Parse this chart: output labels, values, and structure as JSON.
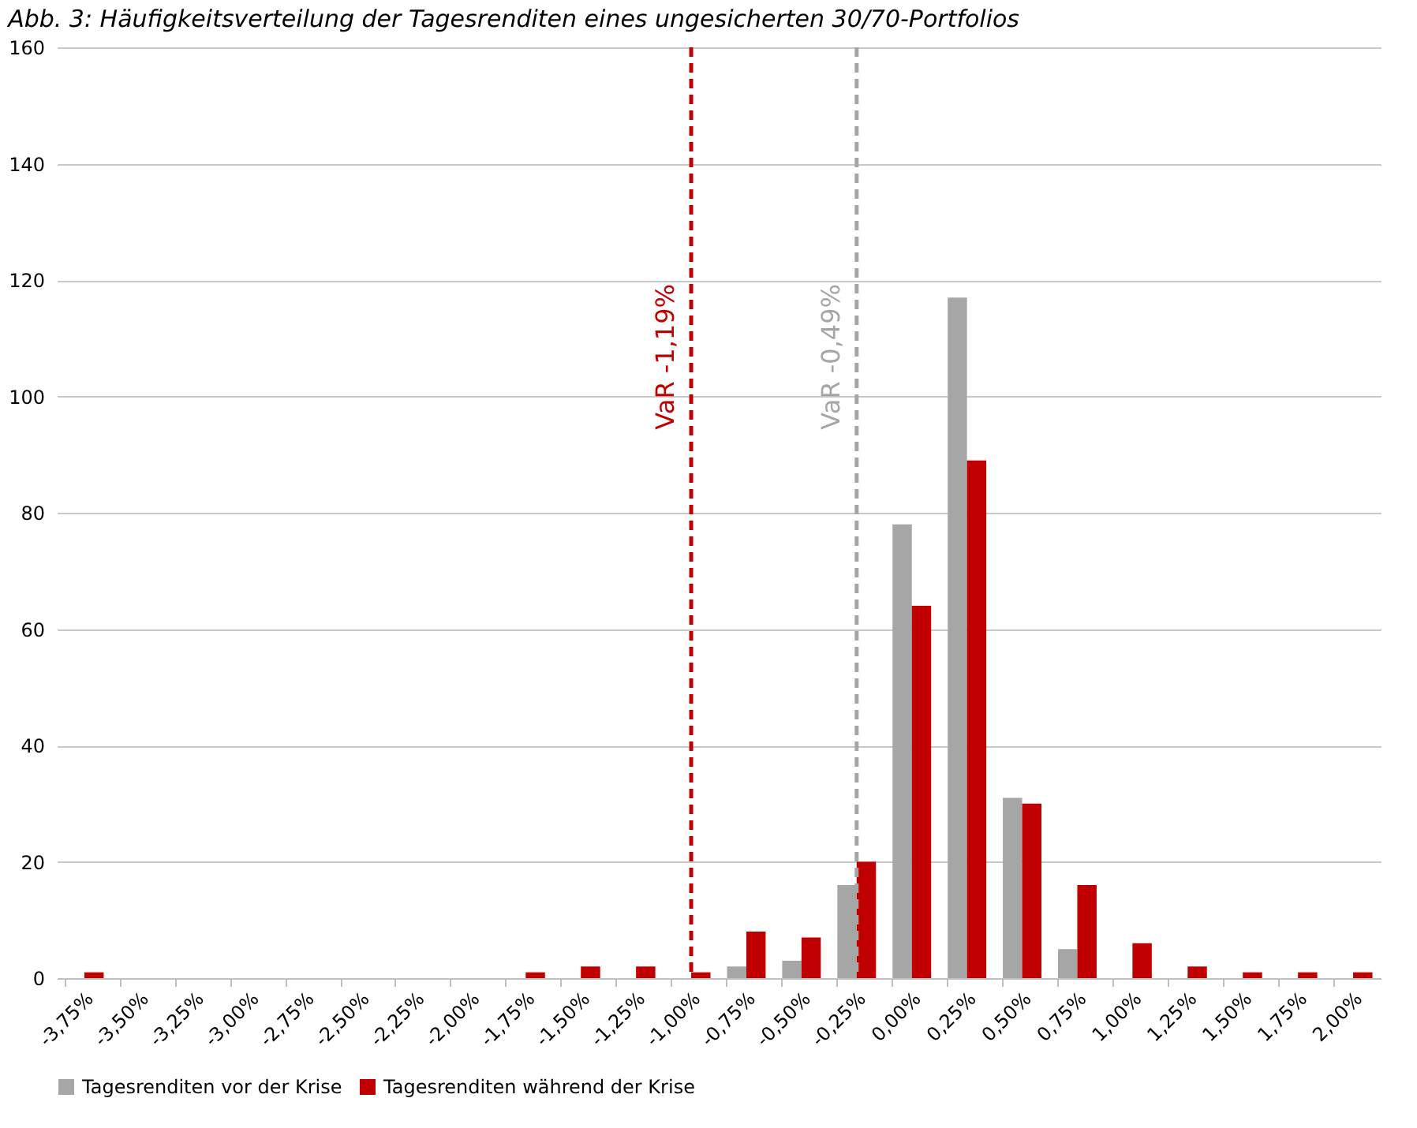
{
  "chart_data": {
    "type": "bar",
    "title": "Abb. 3: Häufigkeitsverteilung der Tagesrenditen eines ungesicherten 30/70-Portfolios",
    "categories": [
      "-3,75%",
      "-3,50%",
      "-3,25%",
      "-3,00%",
      "-2,75%",
      "-2,50%",
      "-2,25%",
      "-2,00%",
      "-1,75%",
      "-1,50%",
      "-1,25%",
      "-1,00%",
      "-0,75%",
      "-0,50%",
      "-0,25%",
      "0,00%",
      "0,25%",
      "0,50%",
      "0,75%",
      "1,00%",
      "1,25%",
      "1,50%",
      "1,75%",
      "2,00%"
    ],
    "series": [
      {
        "name": "Tagesrenditen vor der Krise",
        "color": "#a6a6a6",
        "values": [
          0,
          0,
          0,
          0,
          0,
          0,
          0,
          0,
          0,
          0,
          0,
          0,
          2,
          3,
          16,
          78,
          117,
          31,
          5,
          0,
          0,
          0,
          0,
          0
        ]
      },
      {
        "name": "Tagesrenditen während der Krise",
        "color": "#c00000",
        "values": [
          1,
          0,
          0,
          0,
          0,
          0,
          0,
          0,
          1,
          2,
          2,
          1,
          8,
          7,
          20,
          64,
          89,
          30,
          16,
          6,
          2,
          1,
          1,
          1
        ]
      }
    ],
    "ylim": [
      0,
      160
    ],
    "yticks": [
      0,
      20,
      40,
      60,
      80,
      100,
      120,
      140,
      160
    ],
    "grid": "y",
    "legend": "bottom",
    "ref_lines": [
      {
        "axis": "x",
        "value": "-1,00%",
        "label": "VaR -1,19%",
        "color": "#c00000",
        "line_style": "dashed"
      },
      {
        "axis": "x",
        "value": "-0,25%",
        "label": "VaR -0,49%",
        "color": "#a6a6a6",
        "line_style": "dashed"
      }
    ]
  }
}
